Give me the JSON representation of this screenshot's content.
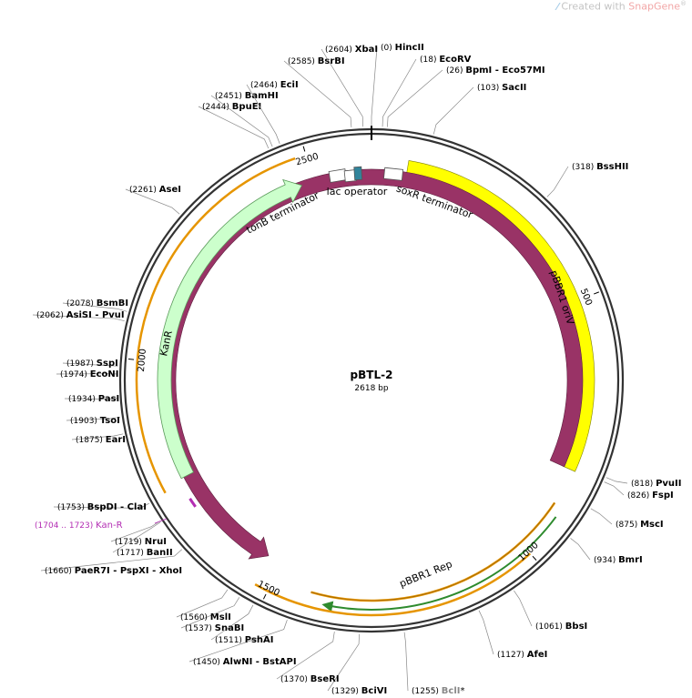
{
  "watermark": {
    "prefix": "Created with",
    "brand": "SnapGene",
    "reg": "®"
  },
  "plasmid": {
    "name": "pBTL-2",
    "size_label": "2618 bp",
    "length": 2618
  },
  "ticks": [
    {
      "pos": 500,
      "label": "500"
    },
    {
      "pos": 1000,
      "label": "1000"
    },
    {
      "pos": 1500,
      "label": "1500"
    },
    {
      "pos": 2000,
      "label": "2000"
    },
    {
      "pos": 2500,
      "label": "2500"
    }
  ],
  "features": [
    {
      "id": "pbbr1-oriv",
      "label": "pBBR1 oriV",
      "color": "#ffff00",
      "stroke": "#808000",
      "label_color": "#000000"
    },
    {
      "id": "pbbr1-rep",
      "label": "pBBR1 Rep",
      "color": "#993366",
      "stroke": "#5a1e3c",
      "label_color": "#ffffff"
    },
    {
      "id": "kanr",
      "label": "KanR",
      "color": "#ccffcc",
      "stroke": "#5a9a5a",
      "label_color": "#000000"
    },
    {
      "id": "tonb-terminator",
      "label": "tonB terminator"
    },
    {
      "id": "lac-operator",
      "label": "lac operator",
      "color": "#31849b"
    },
    {
      "id": "soxr-terminator",
      "label": "soxR terminator"
    }
  ],
  "primer_site": {
    "range": "(1704 .. 1723)",
    "label": "Kan-R",
    "color": "#b32db3"
  },
  "sites": [
    {
      "id": "hincii",
      "pos": "(0)",
      "name": "HincII",
      "extra": ""
    },
    {
      "id": "ecorv",
      "pos": "(18)",
      "name": "EcoRV",
      "extra": ""
    },
    {
      "id": "bpmi",
      "pos": "(26)",
      "name": "BpmI",
      "extra": "Eco57MI"
    },
    {
      "id": "sacii",
      "pos": "(103)",
      "name": "SacII",
      "extra": ""
    },
    {
      "id": "bsshii",
      "pos": "(318)",
      "name": "BssHII",
      "extra": ""
    },
    {
      "id": "pvuii",
      "pos": "(818)",
      "name": "PvuII",
      "extra": ""
    },
    {
      "id": "fspi",
      "pos": "(826)",
      "name": "FspI",
      "extra": ""
    },
    {
      "id": "msci",
      "pos": "(875)",
      "name": "MscI",
      "extra": ""
    },
    {
      "id": "bmri",
      "pos": "(934)",
      "name": "BmrI",
      "extra": ""
    },
    {
      "id": "bbsi",
      "pos": "(1061)",
      "name": "BbsI",
      "extra": ""
    },
    {
      "id": "afei",
      "pos": "(1127)",
      "name": "AfeI",
      "extra": ""
    },
    {
      "id": "bcli",
      "pos": "(1255)",
      "name": "BclI",
      "extra": "",
      "star": "*"
    },
    {
      "id": "bcivi",
      "pos": "(1329)",
      "name": "BciVI",
      "extra": ""
    },
    {
      "id": "bseri",
      "pos": "(1370)",
      "name": "BseRI",
      "extra": ""
    },
    {
      "id": "alwni",
      "pos": "(1450)",
      "name": "AlwNI",
      "extra": "BstAPI"
    },
    {
      "id": "pshai",
      "pos": "(1511)",
      "name": "PshAI",
      "extra": ""
    },
    {
      "id": "snabi",
      "pos": "(1537)",
      "name": "SnaBI",
      "extra": ""
    },
    {
      "id": "msli",
      "pos": "(1560)",
      "name": "MslI",
      "extra": ""
    },
    {
      "id": "paer7i",
      "pos": "(1660)",
      "name": "PaeR7I",
      "extra": "PspXI - XhoI"
    },
    {
      "id": "banii",
      "pos": "(1717)",
      "name": "BanII",
      "extra": ""
    },
    {
      "id": "nrui",
      "pos": "(1719)",
      "name": "NruI",
      "extra": ""
    },
    {
      "id": "bspdi",
      "pos": "(1753)",
      "name": "BspDI",
      "extra": "ClaI"
    },
    {
      "id": "eari",
      "pos": "(1875)",
      "name": "EarI",
      "extra": ""
    },
    {
      "id": "tsoi",
      "pos": "(1903)",
      "name": "TsoI",
      "extra": ""
    },
    {
      "id": "pasi",
      "pos": "(1934)",
      "name": "PasI",
      "extra": ""
    },
    {
      "id": "econi",
      "pos": "(1974)",
      "name": "EcoNI",
      "extra": ""
    },
    {
      "id": "sspi",
      "pos": "(1987)",
      "name": "SspI",
      "extra": ""
    },
    {
      "id": "asisi",
      "pos": "(2062)",
      "name": "AsiSI",
      "extra": "PvuI"
    },
    {
      "id": "bsmbi",
      "pos": "(2078)",
      "name": "BsmBI",
      "extra": ""
    },
    {
      "id": "asei",
      "pos": "(2261)",
      "name": "AseI",
      "extra": ""
    },
    {
      "id": "bpuei",
      "pos": "(2444)",
      "name": "BpuEI",
      "extra": ""
    },
    {
      "id": "bamhi",
      "pos": "(2451)",
      "name": "BamHI",
      "extra": ""
    },
    {
      "id": "ecii",
      "pos": "(2464)",
      "name": "EciI",
      "extra": ""
    },
    {
      "id": "bsrbi",
      "pos": "(2585)",
      "name": "BsrBI",
      "extra": ""
    },
    {
      "id": "xbai",
      "pos": "(2604)",
      "name": "XbaI",
      "extra": ""
    }
  ]
}
